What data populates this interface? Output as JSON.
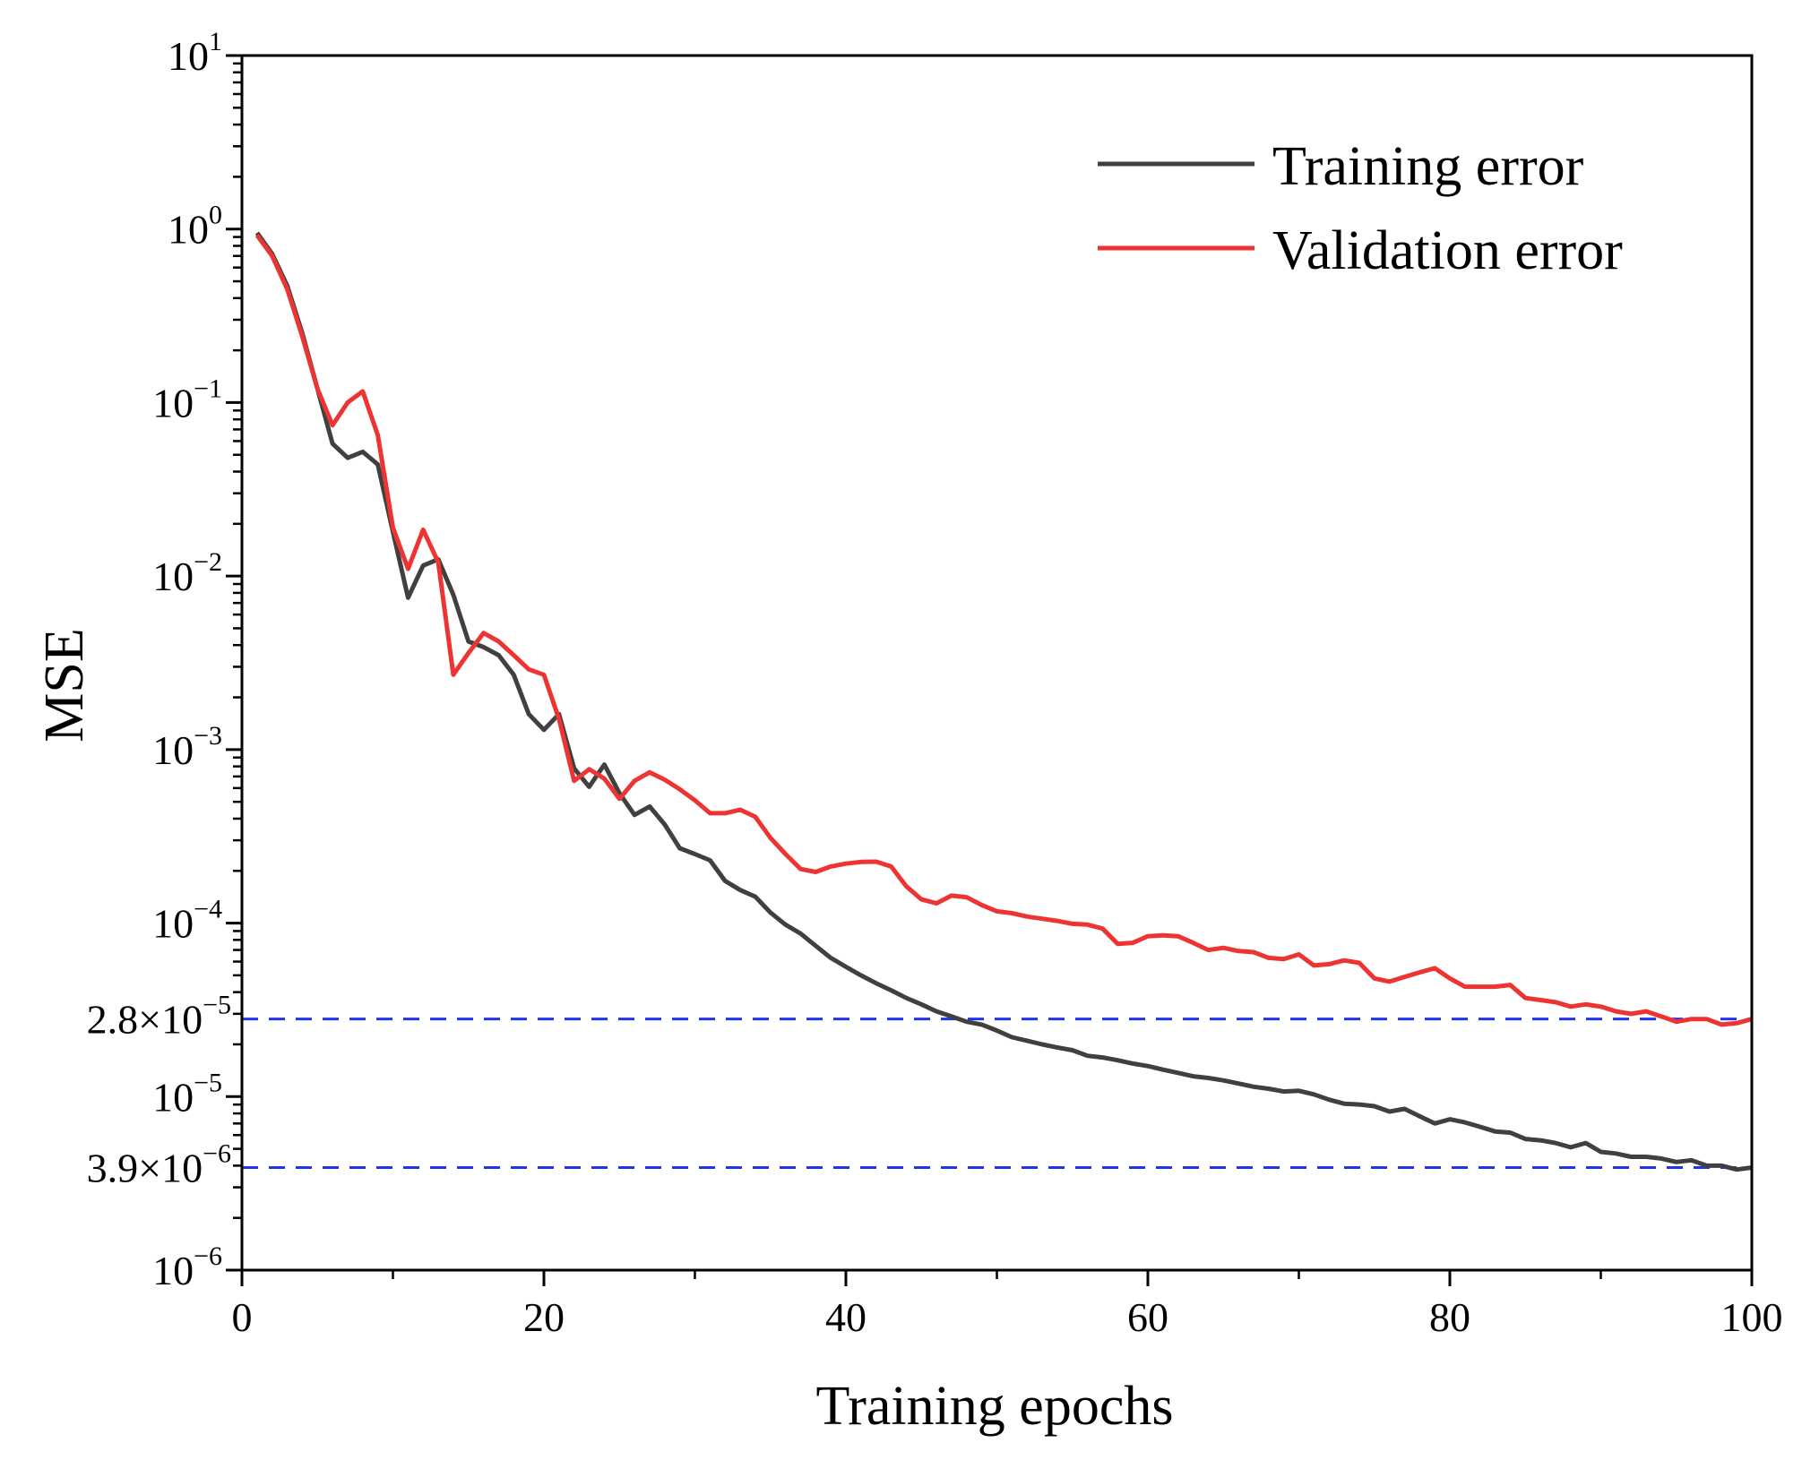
{
  "chart_data": {
    "type": "line",
    "title": "",
    "xlabel": "Training epochs",
    "ylabel": "MSE",
    "yscale": "log",
    "xlim": [
      0,
      100
    ],
    "ylim": [
      1e-06,
      10
    ],
    "grid": false,
    "legend": "top-right",
    "x_ticks": [
      {
        "value": 0,
        "label": "0"
      },
      {
        "value": 20,
        "label": "20"
      },
      {
        "value": 40,
        "label": "40"
      },
      {
        "value": 60,
        "label": "60"
      },
      {
        "value": 80,
        "label": "80"
      },
      {
        "value": 100,
        "label": "100"
      }
    ],
    "y_ticks": [
      {
        "value": 10,
        "base": "10",
        "exp": "1"
      },
      {
        "value": 1,
        "base": "10",
        "exp": "0"
      },
      {
        "value": 0.1,
        "base": "10",
        "exp": "−1"
      },
      {
        "value": 0.01,
        "base": "10",
        "exp": "−2"
      },
      {
        "value": 0.001,
        "base": "10",
        "exp": "−3"
      },
      {
        "value": 0.0001,
        "base": "10",
        "exp": "−4"
      },
      {
        "value": 1e-05,
        "base": "10",
        "exp": "−5"
      },
      {
        "value": 1e-06,
        "base": "10",
        "exp": "−6"
      }
    ],
    "reference_lines": [
      {
        "value": 2.8e-05,
        "base": "2.8×10",
        "exp": "−5",
        "color": "#2233ee"
      },
      {
        "value": 3.9e-06,
        "base": "3.9×10",
        "exp": "−6",
        "color": "#2233ee"
      }
    ],
    "series": [
      {
        "name": "Training error",
        "color": "#404040",
        "x": [
          1,
          2,
          3,
          4,
          5,
          6,
          7,
          8,
          9,
          10,
          11,
          12,
          13,
          14,
          15,
          16,
          17,
          18,
          19,
          20,
          21,
          22,
          23,
          24,
          25,
          26,
          27,
          28,
          29,
          30,
          31,
          32,
          33,
          34,
          35,
          36,
          37,
          38,
          39,
          40,
          41,
          42,
          43,
          44,
          45,
          46,
          47,
          48,
          49,
          50,
          51,
          52,
          53,
          54,
          55,
          56,
          57,
          58,
          59,
          60,
          61,
          62,
          63,
          64,
          65,
          66,
          67,
          68,
          69,
          70,
          71,
          72,
          73,
          74,
          75,
          76,
          77,
          78,
          79,
          80,
          81,
          82,
          83,
          84,
          85,
          86,
          87,
          88,
          89,
          90,
          91,
          92,
          93,
          94,
          95,
          96,
          97,
          98,
          99,
          100
        ],
        "values": [
          0.95,
          0.72,
          0.47,
          0.25,
          0.12,
          0.058,
          0.048,
          0.052,
          0.044,
          0.018,
          0.0075,
          0.0115,
          0.0125,
          0.0078,
          0.0042,
          0.0039,
          0.0035,
          0.0027,
          0.0016,
          0.0013,
          0.0016,
          0.00078,
          0.00061,
          0.00082,
          0.00056,
          0.00042,
          0.00047,
          0.00037,
          0.00027,
          0.00025,
          0.00023,
          0.000175,
          0.000155,
          0.000142,
          0.000115,
          9.8e-05,
          8.7e-05,
          7.4e-05,
          6.3e-05,
          5.6e-05,
          5e-05,
          4.5e-05,
          4.1e-05,
          3.7e-05,
          3.4e-05,
          3.1e-05,
          2.9e-05,
          2.7e-05,
          2.6e-05,
          2.4e-05,
          2.2e-05,
          2.1e-05,
          2e-05,
          1.92e-05,
          1.85e-05,
          1.72e-05,
          1.68e-05,
          1.62e-05,
          1.55e-05,
          1.5e-05,
          1.43e-05,
          1.37e-05,
          1.31e-05,
          1.28e-05,
          1.24e-05,
          1.19e-05,
          1.14e-05,
          1.11e-05,
          1.07e-05,
          1.08e-05,
          1.03e-05,
          9.6e-06,
          9.1e-06,
          9e-06,
          8.8e-06,
          8.2e-06,
          8.5e-06,
          7.7e-06,
          7e-06,
          7.4e-06,
          7.1e-06,
          6.7e-06,
          6.3e-06,
          6.2e-06,
          5.7e-06,
          5.6e-06,
          5.4e-06,
          5.1e-06,
          5.4e-06,
          4.8e-06,
          4.7e-06,
          4.5e-06,
          4.5e-06,
          4.4e-06,
          4.2e-06,
          4.3e-06,
          4e-06,
          4e-06,
          3.8e-06,
          3.9e-06
        ]
      },
      {
        "name": "Validation error",
        "color": "#ee3333",
        "x": [
          1,
          2,
          3,
          4,
          5,
          6,
          7,
          8,
          9,
          10,
          11,
          12,
          13,
          14,
          15,
          16,
          17,
          18,
          19,
          20,
          21,
          22,
          23,
          24,
          25,
          26,
          27,
          28,
          29,
          30,
          31,
          32,
          33,
          34,
          35,
          36,
          37,
          38,
          39,
          40,
          41,
          42,
          43,
          44,
          45,
          46,
          47,
          48,
          49,
          50,
          51,
          52,
          53,
          54,
          55,
          56,
          57,
          58,
          59,
          60,
          61,
          62,
          63,
          64,
          65,
          66,
          67,
          68,
          69,
          70,
          71,
          72,
          73,
          74,
          75,
          76,
          77,
          78,
          79,
          80,
          81,
          82,
          83,
          84,
          85,
          86,
          87,
          88,
          89,
          90,
          91,
          92,
          93,
          94,
          95,
          96,
          97,
          98,
          99,
          100
        ],
        "values": [
          0.92,
          0.7,
          0.45,
          0.24,
          0.12,
          0.074,
          0.1,
          0.116,
          0.065,
          0.019,
          0.011,
          0.0185,
          0.012,
          0.0027,
          0.0036,
          0.0047,
          0.0042,
          0.0035,
          0.0029,
          0.0027,
          0.0015,
          0.00066,
          0.00077,
          0.00068,
          0.00052,
          0.00066,
          0.00074,
          0.00067,
          0.00059,
          0.00051,
          0.00043,
          0.00043,
          0.00045,
          0.00041,
          0.00031,
          0.00025,
          0.000205,
          0.000197,
          0.000212,
          0.00022,
          0.000225,
          0.000226,
          0.000212,
          0.000163,
          0.000137,
          0.00013,
          0.000144,
          0.000141,
          0.000127,
          0.000117,
          0.000114,
          0.000109,
          0.000106,
          0.000103,
          9.9e-05,
          9.8e-05,
          9.3e-05,
          7.6e-05,
          7.7e-05,
          8.4e-05,
          8.5e-05,
          8.4e-05,
          7.7e-05,
          7e-05,
          7.2e-05,
          6.9e-05,
          6.8e-05,
          6.3e-05,
          6.2e-05,
          6.6e-05,
          5.7e-05,
          5.8e-05,
          6.1e-05,
          5.9e-05,
          4.8e-05,
          4.6e-05,
          4.9e-05,
          5.2e-05,
          5.5e-05,
          4.8e-05,
          4.3e-05,
          4.3e-05,
          4.3e-05,
          4.4e-05,
          3.7e-05,
          3.6e-05,
          3.5e-05,
          3.3e-05,
          3.4e-05,
          3.3e-05,
          3.1e-05,
          3e-05,
          3.1e-05,
          2.9e-05,
          2.7e-05,
          2.8e-05,
          2.8e-05,
          2.6e-05,
          2.65e-05,
          2.8e-05
        ]
      }
    ]
  }
}
